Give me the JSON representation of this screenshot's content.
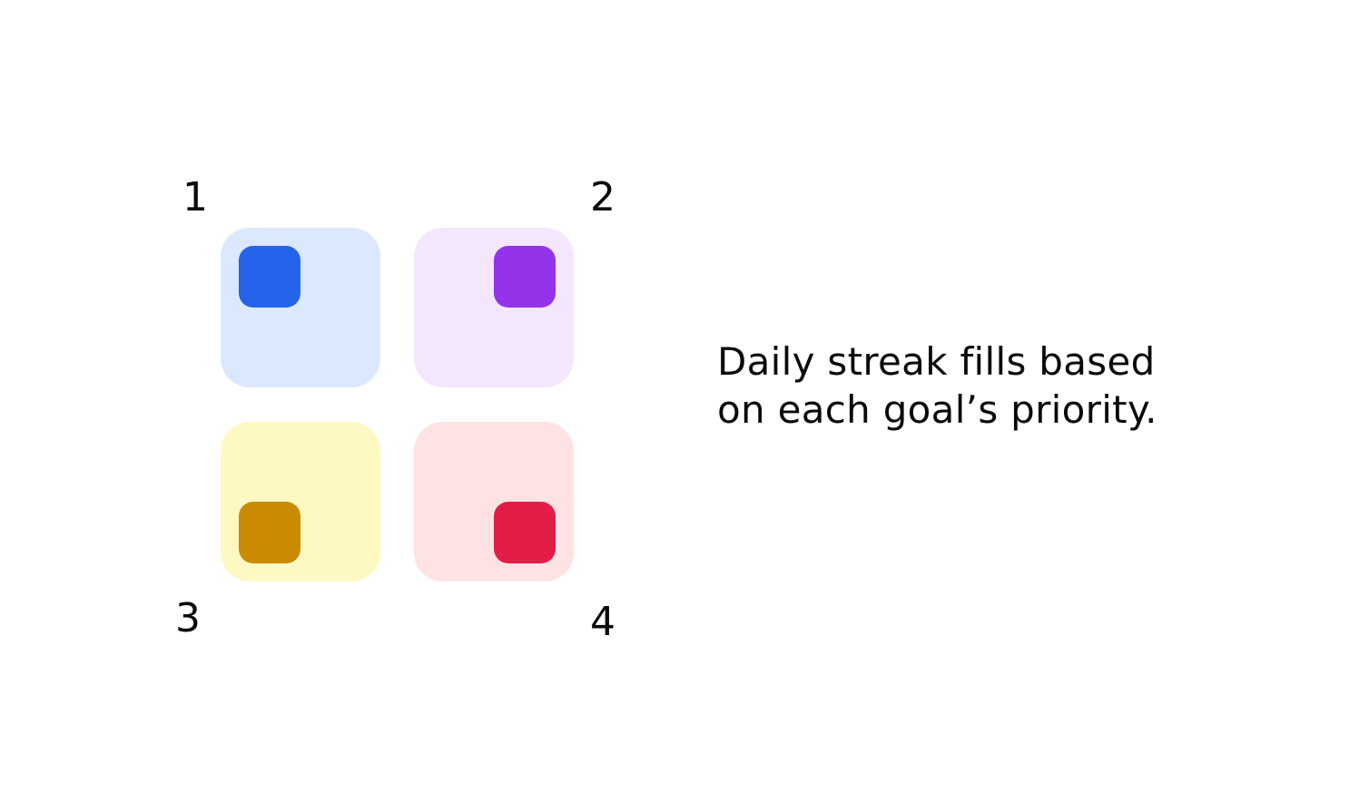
{
  "quadrants": [
    {
      "label": "1",
      "tile_color": "#dbe8fe",
      "fill_color": "#2563eb",
      "fill_corner": "top-left"
    },
    {
      "label": "2",
      "tile_color": "#f3e6fd",
      "fill_color": "#9333ea",
      "fill_corner": "top-right"
    },
    {
      "label": "3",
      "tile_color": "#fef8c3",
      "fill_color": "#ca8a04",
      "fill_corner": "bottom-left"
    },
    {
      "label": "4",
      "tile_color": "#fee2e4",
      "fill_color": "#e11d48",
      "fill_corner": "bottom-right"
    }
  ],
  "caption": "Daily streak fills based on each goal’s priority."
}
